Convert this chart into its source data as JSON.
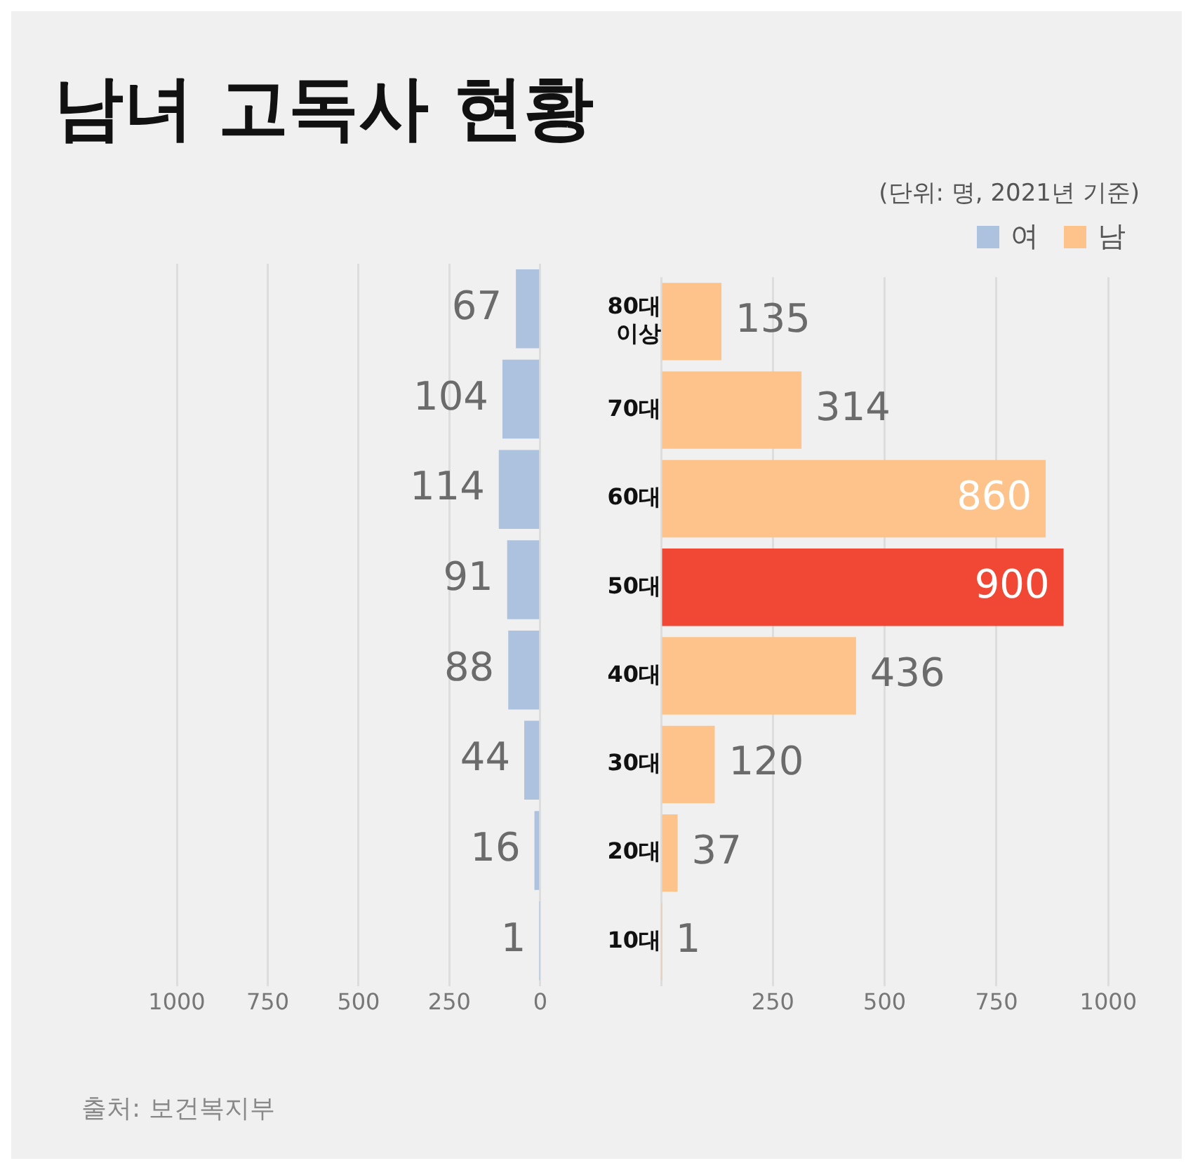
{
  "chart_data": [
    {
      "type": "bar",
      "orientation": "horizontal",
      "title": "남녀 고독사 현황",
      "annotations": [
        "출처: 보건복지부"
      ],
      "categories": [
        "80대 이상",
        "70대",
        "60대",
        "50대",
        "40대",
        "30대",
        "20대",
        "10대"
      ],
      "series": [
        {
          "name": "여",
          "color": "#adc2df",
          "values": [
            67,
            104,
            114,
            91,
            88,
            44,
            16,
            1
          ]
        }
      ],
      "xlim": [
        1000,
        0
      ],
      "xticks": [
        1000,
        750,
        500,
        250,
        0
      ],
      "grid": "x",
      "tick_labels": "x",
      "data_labels": true,
      "legend": "top right"
    },
    {
      "type": "bar",
      "orientation": "horizontal",
      "annotations": [
        "(단위: 명, 2021년 기준)"
      ],
      "categories": [
        "80대 이상",
        "70대",
        "60대",
        "50대",
        "40대",
        "30대",
        "20대",
        "10대"
      ],
      "series": [
        {
          "name": "남",
          "color": "#fdc38a",
          "colors": [
            "#fdc38a",
            "#fdc38a",
            "#fdc38a",
            "#f04834",
            "#fdc38a",
            "#fdc38a",
            "#fdc38a",
            "#fdc38a"
          ],
          "values": [
            135,
            314,
            860,
            900,
            436,
            120,
            37,
            1
          ]
        }
      ],
      "xlim": [
        0,
        1000
      ],
      "xticks": [
        {
          "value": 0,
          "label": null
        },
        250,
        500,
        750,
        1000
      ],
      "grid": "x",
      "data_labels": true,
      "legend": "top right"
    }
  ]
}
